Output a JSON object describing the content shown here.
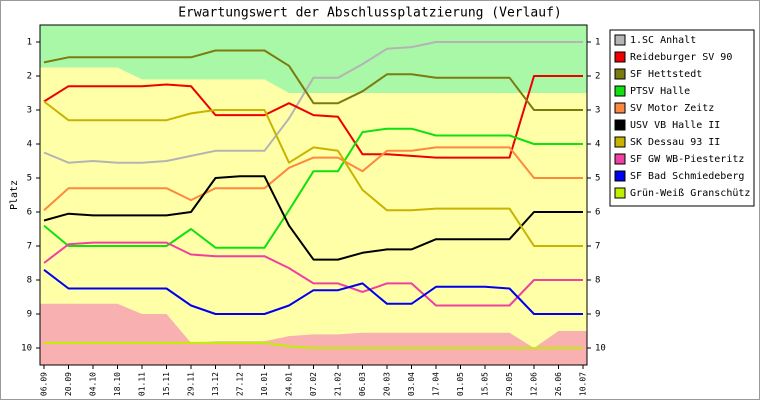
{
  "chart_data": {
    "type": "line",
    "title": "Erwartungswert der Abschlussplatzierung (Verlauf)",
    "y_label": "Platz",
    "categories": [
      "06.09",
      "20.09",
      "04.10",
      "18.10",
      "01.11",
      "15.11",
      "29.11",
      "13.12",
      "27.12",
      "10.01",
      "24.01",
      "07.02",
      "21.02",
      "06.03",
      "20.03",
      "03.04",
      "17.04",
      "01.05",
      "15.05",
      "29.05",
      "12.06",
      "26.06",
      "10.07"
    ],
    "ylim": [
      0.5,
      10.5
    ],
    "y_inverted": true,
    "yticks": [
      1,
      2,
      3,
      4,
      5,
      6,
      7,
      8,
      9,
      10
    ],
    "background": "#ffffa8",
    "bands": [
      {
        "side": "top",
        "color": "#a8f8a8",
        "edge": [
          1.75,
          1.75,
          1.75,
          1.75,
          2.1,
          2.1,
          2.1,
          2.1,
          2.1,
          2.1,
          2.5,
          2.5,
          2.5,
          2.5,
          2.5,
          2.5,
          2.5,
          2.5,
          2.5,
          2.5,
          2.5,
          2.5,
          2.5
        ]
      },
      {
        "side": "bottom",
        "color": "#f8b0b0",
        "edge": [
          8.7,
          8.7,
          8.7,
          8.7,
          9.0,
          9.0,
          9.85,
          9.8,
          9.8,
          9.8,
          9.65,
          9.6,
          9.6,
          9.55,
          9.55,
          9.55,
          9.55,
          9.55,
          9.55,
          9.55,
          10.0,
          9.5,
          9.5
        ]
      }
    ],
    "series": [
      {
        "name": "1.SC Anhalt",
        "color": "#b4b4b4",
        "values": [
          4.25,
          4.55,
          4.5,
          4.55,
          4.55,
          4.5,
          4.35,
          4.2,
          4.2,
          4.2,
          3.25,
          2.05,
          2.05,
          1.65,
          1.2,
          1.15,
          1.0,
          1.0,
          1.0,
          1.0,
          1.0,
          1.0,
          1.0
        ]
      },
      {
        "name": "Reideburger SV 90",
        "color": "#ee0000",
        "values": [
          2.75,
          2.3,
          2.3,
          2.3,
          2.3,
          2.25,
          2.3,
          3.15,
          3.15,
          3.15,
          2.8,
          3.15,
          3.2,
          4.3,
          4.3,
          4.35,
          4.4,
          4.4,
          4.4,
          4.4,
          2.0,
          2.0,
          2.0
        ]
      },
      {
        "name": "SF Hettstedt",
        "color": "#7b7b10",
        "values": [
          1.6,
          1.45,
          1.45,
          1.45,
          1.45,
          1.45,
          1.45,
          1.25,
          1.25,
          1.25,
          1.7,
          2.8,
          2.8,
          2.45,
          1.95,
          1.95,
          2.05,
          2.05,
          2.05,
          2.05,
          3.0,
          3.0,
          3.0
        ]
      },
      {
        "name": "PTSV Halle",
        "color": "#10e010",
        "values": [
          6.4,
          7.0,
          7.0,
          7.0,
          7.0,
          7.0,
          6.5,
          7.05,
          7.05,
          7.05,
          5.95,
          4.8,
          4.8,
          3.65,
          3.55,
          3.55,
          3.75,
          3.75,
          3.75,
          3.75,
          4.0,
          4.0,
          4.0
        ]
      },
      {
        "name": "SV Motor Zeitz",
        "color": "#ff8840",
        "values": [
          5.95,
          5.3,
          5.3,
          5.3,
          5.3,
          5.3,
          5.65,
          5.3,
          5.3,
          5.3,
          4.7,
          4.4,
          4.4,
          4.8,
          4.2,
          4.2,
          4.1,
          4.1,
          4.1,
          4.1,
          5.0,
          5.0,
          5.0
        ]
      },
      {
        "name": "USV VB Halle II",
        "color": "#000000",
        "values": [
          6.25,
          6.05,
          6.1,
          6.1,
          6.1,
          6.1,
          6.0,
          5.0,
          4.95,
          4.95,
          6.4,
          7.4,
          7.4,
          7.2,
          7.1,
          7.1,
          6.8,
          6.8,
          6.8,
          6.8,
          6.0,
          6.0,
          6.0
        ]
      },
      {
        "name": "SK Dessau 93 II",
        "color": "#c8b400",
        "values": [
          2.75,
          3.3,
          3.3,
          3.3,
          3.3,
          3.3,
          3.1,
          3.0,
          3.0,
          3.0,
          4.55,
          4.1,
          4.2,
          5.35,
          5.95,
          5.95,
          5.9,
          5.9,
          5.9,
          5.9,
          7.0,
          7.0,
          7.0
        ]
      },
      {
        "name": "SF GW WB-Piesteritz",
        "color": "#f040a0",
        "values": [
          7.5,
          6.95,
          6.9,
          6.9,
          6.9,
          6.9,
          7.25,
          7.3,
          7.3,
          7.3,
          7.65,
          8.1,
          8.1,
          8.35,
          8.1,
          8.1,
          8.75,
          8.75,
          8.75,
          8.75,
          8.0,
          8.0,
          8.0
        ]
      },
      {
        "name": "SF Bad Schmiedeberg",
        "color": "#0000ee",
        "values": [
          7.7,
          8.25,
          8.25,
          8.25,
          8.25,
          8.25,
          8.75,
          9.0,
          9.0,
          9.0,
          8.75,
          8.3,
          8.3,
          8.1,
          8.7,
          8.7,
          8.2,
          8.2,
          8.2,
          8.25,
          9.0,
          9.0,
          9.0
        ]
      },
      {
        "name": "Grün-Weiß Granschütz",
        "color": "#c0f000",
        "values": [
          9.85,
          9.85,
          9.85,
          9.85,
          9.85,
          9.85,
          9.85,
          9.85,
          9.85,
          9.85,
          9.95,
          10.0,
          10.0,
          10.0,
          10.0,
          10.0,
          10.0,
          10.0,
          10.0,
          10.0,
          10.0,
          10.0,
          10.0
        ]
      }
    ]
  }
}
